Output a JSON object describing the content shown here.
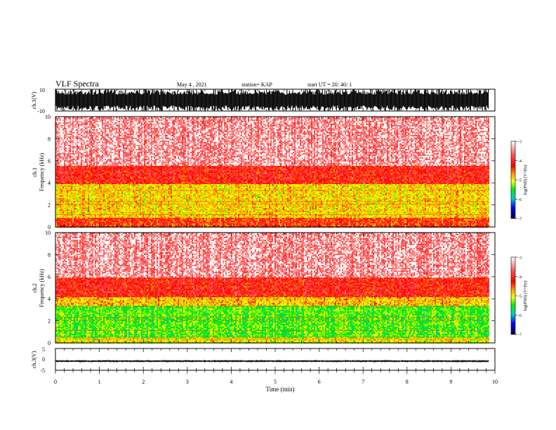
{
  "header": {
    "title": "VLF Spectra",
    "date": "May 4 , 2021",
    "station": "station= KAP",
    "start": "start  UT =  20: 40: 1"
  },
  "colors": {
    "spectrum_high": "#ff0000",
    "spectrum_mid": "#ffff00",
    "spectrum_low": "#00ee00",
    "trace": "#000000"
  },
  "chart_data": [
    {
      "type": "line",
      "name": "waveform-ch1",
      "ylabel": "ch.1(V)",
      "yticks": [
        "10",
        "-10"
      ],
      "ylim": [
        -10,
        10
      ],
      "xlim": [
        0,
        10
      ],
      "description_values": {
        "amplitude_range_V": [
          -10,
          10
        ],
        "end_min": 9.85
      }
    },
    {
      "type": "heatmap",
      "name": "spectrogram-ch1",
      "ylabel": "ch.1\nFrequency (kHz)",
      "yticks": [
        "0",
        "2",
        "4",
        "6",
        "8",
        "10"
      ],
      "ylim": [
        0,
        10
      ],
      "xlim": [
        0,
        10
      ],
      "colorbar": {
        "label": "log(PSD) (V²/Hz)",
        "ticks": [
          "-3",
          "-4",
          "-5",
          "-6",
          "-7"
        ],
        "range": [
          -7,
          -3
        ]
      },
      "bands_kHz": [
        {
          "from": 0,
          "to": 0.9,
          "level": -4.2
        },
        {
          "from": 0.9,
          "to": 4.0,
          "level": -4.7
        },
        {
          "from": 4.0,
          "to": 5.6,
          "level": -4.0
        },
        {
          "from": 5.6,
          "to": 10,
          "level": -3.4
        }
      ]
    },
    {
      "type": "heatmap",
      "name": "spectrogram-ch2",
      "ylabel": "ch.2\nFrequency (kHz)",
      "yticks": [
        "0",
        "2",
        "4",
        "6",
        "8",
        "10"
      ],
      "ylim": [
        0,
        10
      ],
      "xlim": [
        0,
        10
      ],
      "colorbar": {
        "label": "log(PSD) (V²/Hz)",
        "ticks": [
          "-3",
          "-4",
          "-5",
          "-6",
          "-7"
        ],
        "range": [
          -7,
          -3
        ]
      },
      "bands_kHz": [
        {
          "from": 0,
          "to": 0.5,
          "level": -4.8
        },
        {
          "from": 0.5,
          "to": 3.4,
          "level": -5.2
        },
        {
          "from": 3.4,
          "to": 4.2,
          "level": -4.6
        },
        {
          "from": 4.2,
          "to": 6.0,
          "level": -4.0
        },
        {
          "from": 6.0,
          "to": 10,
          "level": -3.4
        }
      ]
    },
    {
      "type": "line",
      "name": "waveform-ch3",
      "ylabel": "ch.3(V)",
      "yticks": [
        "5",
        "0",
        "-5"
      ],
      "ylim": [
        -5,
        5
      ],
      "xlim": [
        0,
        10
      ],
      "description_values": {
        "amplitude_range_V": [
          -1.3,
          -0.3
        ],
        "end_min": 9.85
      }
    }
  ],
  "xaxis": {
    "label": "Time  (min)",
    "ticks": [
      "0",
      "1",
      "2",
      "3",
      "4",
      "5",
      "6",
      "7",
      "8",
      "9",
      "10"
    ]
  }
}
